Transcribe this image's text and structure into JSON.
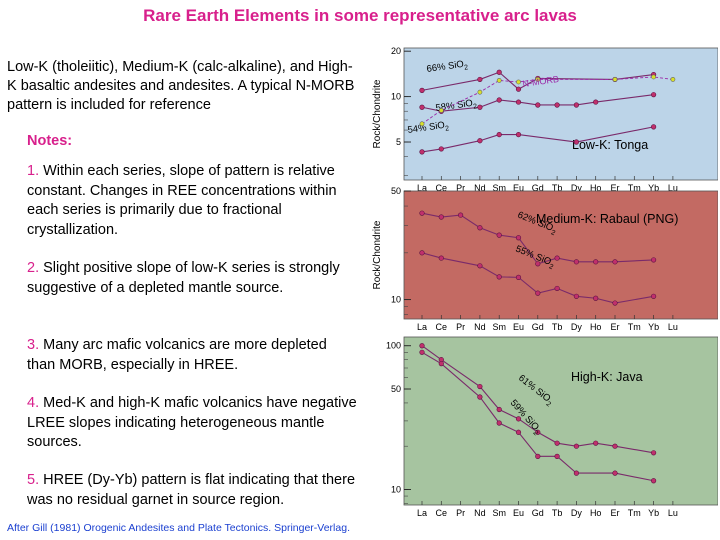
{
  "title": "Rare Earth Elements in some representative arc lavas",
  "intro": "Low-K (tholeiitic), Medium-K (calc-alkaline), and High-K basaltic andesites and andesites.  A typical N-MORB pattern is included for reference",
  "notes_heading": "Notes:",
  "notes": [
    {
      "num": "1.",
      "text": " Within each series, slope of pattern is relative constant.  Changes in REE concentrations within each series is primarily due to fractional crystallization."
    },
    {
      "num": "2.",
      "text": " Slight positive slope of low-K series is strongly suggestive of a depleted mantle source."
    },
    {
      "num": "3.",
      "text": " Many arc mafic volcanics are more depleted than MORB, especially in HREE."
    },
    {
      "num": "4.",
      "text": " Med-K and high-K mafic volcanics have negative LREE slopes indicating heterogeneous mantle sources."
    },
    {
      "num": "5.",
      "text": " HREE (Dy-Yb) pattern is flat indicating that there was no residual garnet in source region."
    }
  ],
  "credit": "After Gill (1981) Orogenic Andesites and Plate Tectonics. Springer-Verlag.",
  "colors": {
    "title": "#d8208c",
    "credit": "#1a3fd0",
    "low_bg": "#bcd4e8",
    "med_bg": "#c36a63",
    "high_bg": "#a6c4a0",
    "line": "#7a2a6a",
    "point": "#c0306c",
    "nmorb": "#9a2aa8"
  },
  "chart_data": [
    {
      "type": "line",
      "title": "Low-K:  Tonga",
      "ylabel": "Rock/Chondrite",
      "log_y": true,
      "ylim": [
        2.8,
        21
      ],
      "yticks": [
        {
          "value": 5,
          "label": "5"
        },
        {
          "value": 10,
          "label": "10"
        },
        {
          "value": 20,
          "label": "20"
        }
      ],
      "categories": [
        "La",
        "Ce",
        "Pr",
        "Nd",
        "Sm",
        "Eu",
        "Gd",
        "Tb",
        "Dy",
        "Ho",
        "Er",
        "Tm",
        "Yb",
        "Lu"
      ],
      "series": [
        {
          "name": "66% SiO2",
          "label": "66% SiO",
          "sub": "2",
          "x": [
            "La",
            "Nd",
            "Sm",
            "Eu",
            "Gd",
            "Er",
            "Yb"
          ],
          "values": [
            11,
            13,
            14.5,
            11.2,
            13.2,
            13,
            14
          ]
        },
        {
          "name": "58% SiO2",
          "label": "58% SiO",
          "sub": "2",
          "x": [
            "La",
            "Ce",
            "Nd",
            "Sm",
            "Eu",
            "Gd",
            "Tb",
            "Dy",
            "Ho",
            "Yb"
          ],
          "values": [
            8.5,
            8.0,
            8.5,
            9.5,
            9.2,
            8.8,
            8.8,
            8.8,
            9.2,
            10.3
          ]
        },
        {
          "name": "54% SiO2",
          "label": "54% SiO",
          "sub": "2",
          "x": [
            "La",
            "Ce",
            "Nd",
            "Sm",
            "Eu",
            "Dy",
            "Yb"
          ],
          "values": [
            4.3,
            4.5,
            5.1,
            5.6,
            5.6,
            5.0,
            6.3
          ]
        },
        {
          "name": "N-MORB",
          "label": "N-MORB",
          "sub": "",
          "dashed": true,
          "x": [
            "La",
            "Ce",
            "Nd",
            "Sm",
            "Eu",
            "Gd",
            "Er",
            "Yb",
            "Lu"
          ],
          "values": [
            6.6,
            8.1,
            10.7,
            12.8,
            12.5,
            13.0,
            13.0,
            13.5,
            13.0
          ]
        }
      ]
    },
    {
      "type": "line",
      "title": "Medium-K:  Rabaul (PNG)",
      "ylabel": "Rock/Chondrite",
      "log_y": true,
      "ylim": [
        7.5,
        50
      ],
      "yticks": [
        {
          "value": 10,
          "label": "10"
        },
        {
          "value": 50,
          "label": "50"
        }
      ],
      "categories": [
        "La",
        "Ce",
        "Pr",
        "Nd",
        "Sm",
        "Eu",
        "Gd",
        "Tb",
        "Dy",
        "Ho",
        "Er",
        "Tm",
        "Yb",
        "Lu"
      ],
      "series": [
        {
          "name": "62% SiO2",
          "label": "62% SiO",
          "sub": "2",
          "x": [
            "La",
            "Ce",
            "Pr",
            "Nd",
            "Sm",
            "Eu",
            "Gd",
            "Tb",
            "Dy",
            "Ho",
            "Er",
            "Yb"
          ],
          "values": [
            36,
            34,
            35,
            29,
            26,
            25,
            17,
            18.5,
            17.5,
            17.5,
            17.5,
            18
          ]
        },
        {
          "name": "55% SiO2",
          "label": "55% SiO",
          "sub": "2",
          "x": [
            "La",
            "Ce",
            "Nd",
            "Sm",
            "Eu",
            "Gd",
            "Tb",
            "Dy",
            "Ho",
            "Er",
            "Yb"
          ],
          "values": [
            20,
            18.5,
            16.5,
            14,
            13.9,
            11,
            11.8,
            10.5,
            10.2,
            9.5,
            10.5
          ]
        }
      ]
    },
    {
      "type": "line",
      "title": "High-K:  Java",
      "ylabel": "",
      "log_y": true,
      "ylim": [
        7.8,
        115
      ],
      "yticks": [
        {
          "value": 10,
          "label": "10"
        },
        {
          "value": 50,
          "label": "50"
        },
        {
          "value": 100,
          "label": "100"
        }
      ],
      "categories": [
        "La",
        "Ce",
        "Pr",
        "Nd",
        "Sm",
        "Eu",
        "Gd",
        "Tb",
        "Dy",
        "Ho",
        "Er",
        "Tm",
        "Yb",
        "Lu"
      ],
      "series": [
        {
          "name": "61% SiO2",
          "label": "61% SiO",
          "sub": "2",
          "x": [
            "La",
            "Ce",
            "Nd",
            "Sm",
            "Eu",
            "Gd",
            "Tb",
            "Dy",
            "Ho",
            "Er",
            "Yb"
          ],
          "values": [
            100,
            80,
            52,
            36,
            31,
            25,
            21,
            20,
            21,
            20,
            18
          ]
        },
        {
          "name": "59% SiO2",
          "label": "59% SiO",
          "sub": "2",
          "x": [
            "La",
            "Ce",
            "Nd",
            "Sm",
            "Eu",
            "Gd",
            "Tb",
            "Dy",
            "Er",
            "Yb"
          ],
          "values": [
            90,
            75,
            44,
            29,
            25,
            17,
            17,
            13,
            13,
            11.5
          ]
        }
      ]
    }
  ]
}
